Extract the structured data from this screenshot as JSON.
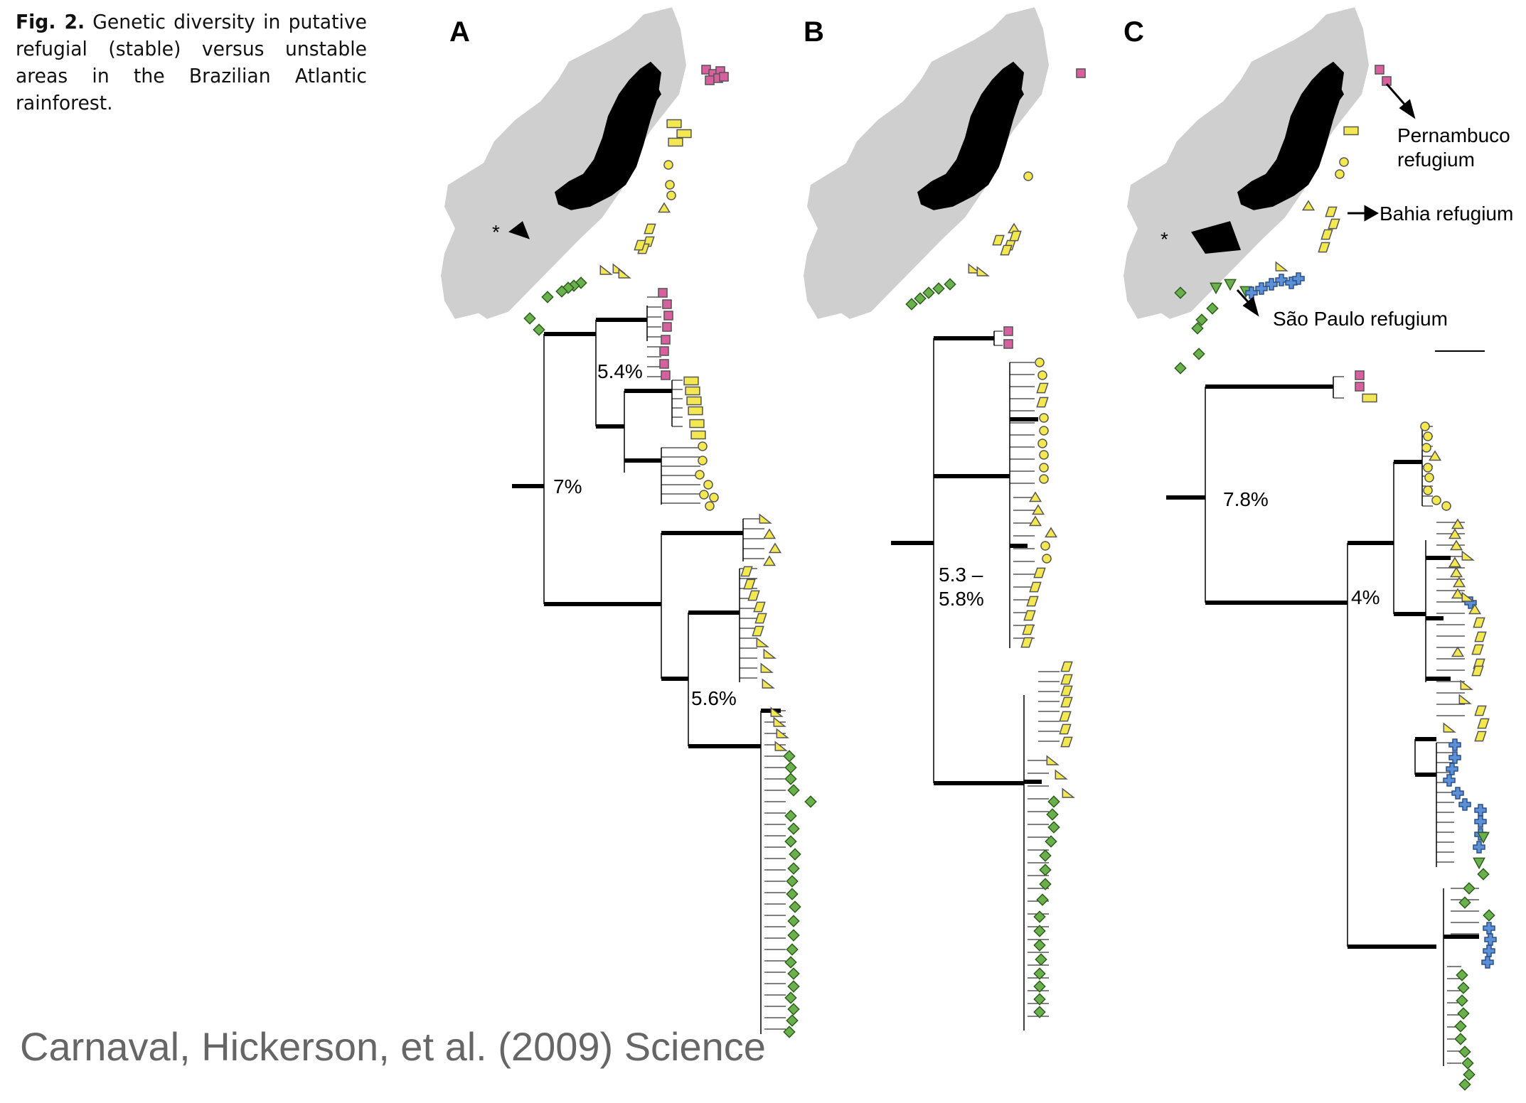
{
  "caption": {
    "figure_label": "Fig. 2.",
    "text": "Genetic diversity in putative refugial (stable) versus unstable areas in the Brazilian Atlantic rainforest."
  },
  "panels": [
    {
      "letter": "A",
      "divergences": [
        "5.4%",
        "7%",
        "5.6%"
      ]
    },
    {
      "letter": "B",
      "divergences": [
        "5.3 –",
        "5.8%"
      ]
    },
    {
      "letter": "C",
      "divergences": [
        "7.8%",
        "4%"
      ]
    }
  ],
  "annotations": {
    "pernambuco_line1": "Pernambuco",
    "pernambuco_line2": "refugium",
    "bahia": "Bahia refugium",
    "sao_paulo": "São Paulo refugium",
    "asterisk": "*"
  },
  "credit": "Carnaval, Hickerson, et al. (2009) Science",
  "colors": {
    "pink": "#d9609f",
    "yellow": "#f3e84f",
    "green": "#6ab04c",
    "blue": "#5b8fd6",
    "map_gray": "#cfcfcf",
    "forest_black": "#000000"
  },
  "symbol_legend": {
    "pink-square": "Pernambuco populations",
    "yellow-rectangle": "yellow rectangle",
    "yellow-circle": "yellow circle",
    "yellow-triangle": "yellow triangle",
    "yellow-parallelogram": "yellow parallelogram",
    "green-diamond": "green diamond",
    "green-inverted-triangle": "green inverted triangle",
    "blue-cross": "blue cross"
  }
}
